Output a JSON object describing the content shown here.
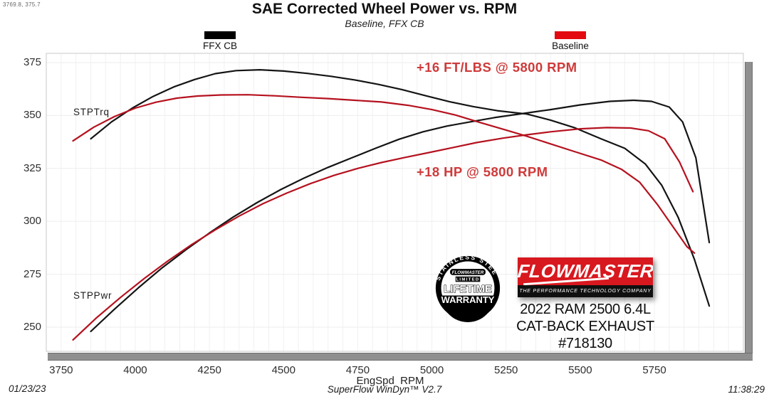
{
  "readout": "3769.8, 375.7",
  "header": {
    "title": "SAE Corrected Wheel Power vs. RPM",
    "subtitle": "Baseline, FFX CB"
  },
  "legend": [
    {
      "label": "FFX CB",
      "color": "#000000"
    },
    {
      "label": "Baseline",
      "color": "#e20a10"
    }
  ],
  "annotations": {
    "torque": "+16 FT/LBS @ 5800 RPM",
    "power": "+18 HP @ 5800 RPM"
  },
  "curve_labels": {
    "torque": "STPTrq",
    "power": "STPPwr"
  },
  "branding": {
    "warranty_badge": {
      "arc_text": "STAINLESS STEEL",
      "brand": "FLOWMASTER",
      "limited": "LIMITED",
      "lifetime": "LIFETIME",
      "warranty": "WARRANTY"
    },
    "logo": {
      "name": "FLOWMASTER",
      "tm": "™",
      "tagline": "THE PERFORMANCE TECHNOLOGY COMPANY"
    },
    "vehicle_line1": "2022 RAM 2500 6.4L",
    "vehicle_line2": "CAT-BACK EXHAUST #718130"
  },
  "footer": {
    "date": "01/23/23",
    "software": "SuperFlow WinDyn™ V2.7",
    "time": "11:38:29"
  },
  "chart_data": {
    "type": "line",
    "title": "SAE Corrected Wheel Power vs. RPM",
    "subtitle": "Baseline, FFX CB",
    "xlabel": "EngSpd  RPM",
    "ylabel": "",
    "x_ticks": [
      3750,
      4000,
      4250,
      4500,
      4750,
      5000,
      5250,
      5500,
      5750
    ],
    "y_ticks": [
      250,
      275,
      300,
      325,
      350,
      375
    ],
    "xlim": [
      3700,
      6050
    ],
    "ylim": [
      238,
      379
    ],
    "grid": {
      "on": true,
      "x_minor_step": 50,
      "y_step": 25
    },
    "legend_position": "top",
    "series": [
      {
        "id": "ffx-torque",
        "name": "FFX CB STPTrq",
        "unit": "ft-lbs",
        "color": "#141414",
        "points": [
          [
            3850,
            339
          ],
          [
            3920,
            347
          ],
          [
            3990,
            353.5
          ],
          [
            4060,
            359
          ],
          [
            4130,
            363.5
          ],
          [
            4200,
            367
          ],
          [
            4270,
            369.8
          ],
          [
            4340,
            371.2
          ],
          [
            4420,
            371.6
          ],
          [
            4500,
            371
          ],
          [
            4580,
            369.9
          ],
          [
            4660,
            368.5
          ],
          [
            4740,
            366.8
          ],
          [
            4820,
            364.7
          ],
          [
            4900,
            362.2
          ],
          [
            4980,
            359.3
          ],
          [
            5060,
            356.5
          ],
          [
            5140,
            354.2
          ],
          [
            5220,
            352.3
          ],
          [
            5320,
            350.7
          ],
          [
            5400,
            347.8
          ],
          [
            5480,
            344.3
          ],
          [
            5570,
            339
          ],
          [
            5650,
            334.5
          ],
          [
            5720,
            327
          ],
          [
            5775,
            317
          ],
          [
            5830,
            302
          ],
          [
            5885,
            282
          ],
          [
            5935,
            260
          ]
        ]
      },
      {
        "id": "ffx-power",
        "name": "FFX CB STPPwr",
        "unit": "hp",
        "color": "#141414",
        "points": [
          [
            3850,
            248
          ],
          [
            3930,
            258.5
          ],
          [
            4010,
            268.5
          ],
          [
            4090,
            278
          ],
          [
            4170,
            286.5
          ],
          [
            4250,
            294.5
          ],
          [
            4330,
            302
          ],
          [
            4410,
            308.8
          ],
          [
            4490,
            315
          ],
          [
            4570,
            320.5
          ],
          [
            4650,
            325.5
          ],
          [
            4730,
            330
          ],
          [
            4810,
            334.5
          ],
          [
            4890,
            338.8
          ],
          [
            4970,
            342.3
          ],
          [
            5050,
            345
          ],
          [
            5130,
            347
          ],
          [
            5210,
            349
          ],
          [
            5300,
            350.8
          ],
          [
            5400,
            352.8
          ],
          [
            5500,
            355
          ],
          [
            5600,
            356.7
          ],
          [
            5680,
            357.2
          ],
          [
            5740,
            356.7
          ],
          [
            5800,
            354
          ],
          [
            5845,
            347
          ],
          [
            5890,
            330
          ],
          [
            5935,
            290
          ]
        ]
      },
      {
        "id": "baseline-torque",
        "name": "Baseline STPTrq",
        "unit": "ft-lbs",
        "color": "#b5121f",
        "points": [
          [
            3790,
            338
          ],
          [
            3860,
            344.5
          ],
          [
            3930,
            349.5
          ],
          [
            4000,
            353.5
          ],
          [
            4070,
            356.3
          ],
          [
            4140,
            358.2
          ],
          [
            4210,
            359.2
          ],
          [
            4290,
            359.7
          ],
          [
            4380,
            359.8
          ],
          [
            4470,
            359.3
          ],
          [
            4560,
            358.6
          ],
          [
            4650,
            358
          ],
          [
            4740,
            357.2
          ],
          [
            4830,
            356.4
          ],
          [
            4920,
            354.8
          ],
          [
            5000,
            352.8
          ],
          [
            5080,
            350.2
          ],
          [
            5160,
            346.8
          ],
          [
            5240,
            343.5
          ],
          [
            5320,
            340.2
          ],
          [
            5400,
            336.6
          ],
          [
            5480,
            333
          ],
          [
            5570,
            329
          ],
          [
            5640,
            324.5
          ],
          [
            5700,
            318.5
          ],
          [
            5760,
            308
          ],
          [
            5815,
            297
          ],
          [
            5860,
            288
          ],
          [
            5885,
            285
          ]
        ]
      },
      {
        "id": "baseline-power",
        "name": "Baseline STPPwr",
        "unit": "hp",
        "color": "#b5121f",
        "points": [
          [
            3790,
            244
          ],
          [
            3870,
            254.5
          ],
          [
            3950,
            264
          ],
          [
            4030,
            273
          ],
          [
            4110,
            281.3
          ],
          [
            4190,
            289
          ],
          [
            4270,
            296
          ],
          [
            4350,
            302.5
          ],
          [
            4430,
            308.3
          ],
          [
            4510,
            313.3
          ],
          [
            4590,
            317.8
          ],
          [
            4670,
            321.7
          ],
          [
            4750,
            325
          ],
          [
            4830,
            327.8
          ],
          [
            4910,
            330.2
          ],
          [
            4990,
            332.5
          ],
          [
            5070,
            334.8
          ],
          [
            5150,
            337.2
          ],
          [
            5240,
            339.3
          ],
          [
            5320,
            340.9
          ],
          [
            5400,
            342.3
          ],
          [
            5500,
            343.7
          ],
          [
            5590,
            344.3
          ],
          [
            5670,
            344.1
          ],
          [
            5730,
            342.8
          ],
          [
            5785,
            339
          ],
          [
            5835,
            328
          ],
          [
            5880,
            314
          ]
        ]
      }
    ]
  }
}
